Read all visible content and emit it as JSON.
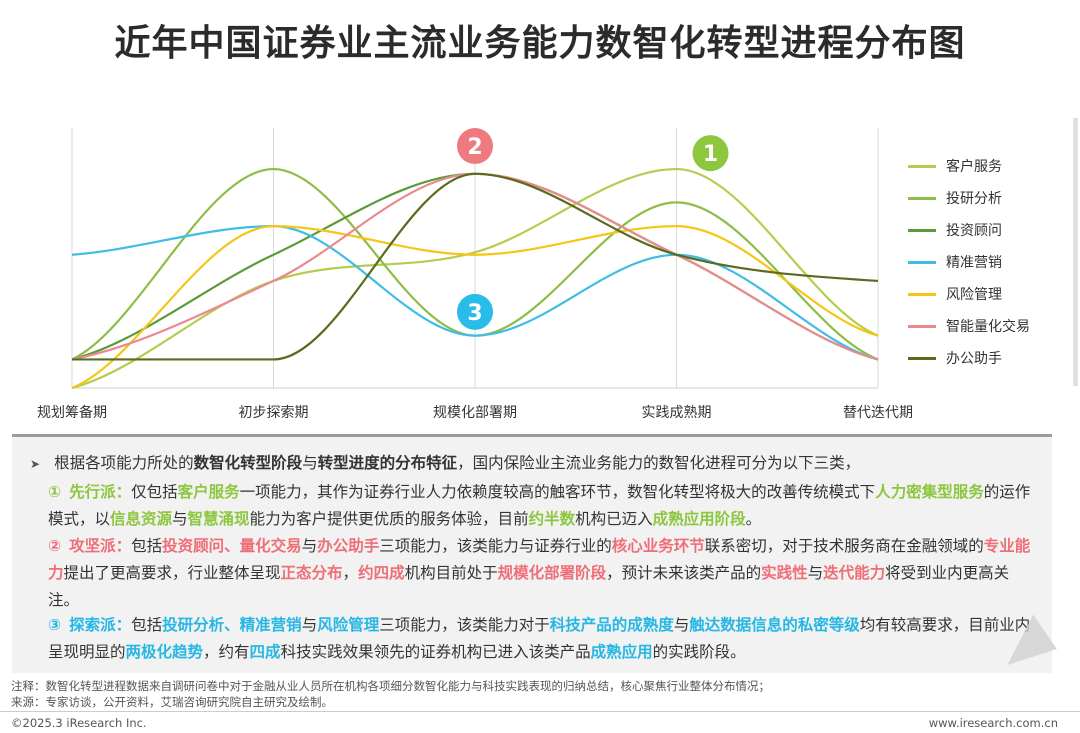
{
  "title": "近年中国证券业主流业务能力数智化转型进程分布图",
  "chart_data": {
    "type": "line",
    "categories": [
      "规划筹备期",
      "初步探索期",
      "规模化部署期",
      "实践成熟期",
      "替代迭代期"
    ],
    "ylim": [
      0,
      100
    ],
    "grid": "vertical-only",
    "legend_position": "right",
    "series": [
      {
        "name": "客户服务",
        "color": "#b5cd4e",
        "values": [
          0,
          45,
          57,
          92,
          22
        ]
      },
      {
        "name": "投研分析",
        "color": "#8dbd45",
        "values": [
          12,
          92,
          22,
          78,
          12
        ]
      },
      {
        "name": "投资顾问",
        "color": "#5a9a37",
        "values": [
          12,
          56,
          90,
          56,
          12
        ]
      },
      {
        "name": "精准营销",
        "color": "#3fbde4",
        "values": [
          56,
          68,
          22,
          56,
          12
        ]
      },
      {
        "name": "风险管理",
        "color": "#f5c617",
        "values": [
          0,
          68,
          56,
          68,
          22
        ]
      },
      {
        "name": "智能量化交易",
        "color": "#ea8a8f",
        "values": [
          12,
          45,
          90,
          56,
          12
        ]
      },
      {
        "name": "办公助手",
        "color": "#5b6b1e",
        "values": [
          12,
          12,
          90,
          56,
          45
        ]
      }
    ],
    "annotations": [
      {
        "label": "1",
        "color": "#8dc63f",
        "x": 3,
        "y": 97
      },
      {
        "label": "2",
        "color": "#ee7a80",
        "x": 2,
        "y": 100
      },
      {
        "label": "3",
        "color": "#27bde8",
        "x": 2,
        "y": 32
      }
    ]
  },
  "summary": {
    "intro_a": "根据各项能力所处的",
    "intro_b": "数智化转型阶段",
    "intro_c": "与",
    "intro_d": "转型进度的分布特征",
    "intro_e": "，国内保险业主流业务能力的数智化进程可分为以下三类，",
    "cat1": {
      "num": "①",
      "name": "先行派：",
      "t1": "仅包括",
      "h1": "客户服务",
      "t2": "一项能力，其作为证券行业人力依赖度较高的触客环节，数智化转型将极大的改善传统模式下",
      "h2": "人力密集型服务",
      "t3": "的运作模式，以",
      "h3": "信息资源",
      "t4": "与",
      "h4": "智慧涌现",
      "t5": "能力为客户提供更优质的服务体验，目前",
      "h5": "约半数",
      "t6": "机构已迈入",
      "h6": "成熟应用阶段",
      "t7": "。"
    },
    "cat2": {
      "num": "②",
      "name": "攻坚派：",
      "t1": "包括",
      "h1": "投资顾问、量化交易",
      "t2": "与",
      "h2": "办公助手",
      "t3": "三项能力，该类能力与证券行业的",
      "h3": "核心业务环节",
      "t4": "联系密切，对于技术服务商在金融领域的",
      "h4": "专业能力",
      "t5": "提出了更高要求，行业整体呈现",
      "h5": "正态分布",
      "t6": "，",
      "h6": "约四成",
      "t7": "机构目前处于",
      "h7": "规模化部署阶段",
      "t8": "，预计未来该类产品的",
      "h8": "实践性",
      "t9": "与",
      "h9": "迭代能力",
      "t10": "将受到业内更高关注。"
    },
    "cat3": {
      "num": "③",
      "name": "探索派：",
      "t1": "包括",
      "h1": "投研分析、精准营销",
      "t2": "与",
      "h2": "风险管理",
      "t3": "三项能力，该类能力对于",
      "h3": "科技产品的成熟度",
      "t4": "与",
      "h4": "触达数据信息的私密等级",
      "t5": "均有较高要求，目前业内呈现明显的",
      "h5": "两极化趋势",
      "t6": "，约有",
      "h6": "四成",
      "t7": "科技实践效果领先的证券机构已进入该类产品",
      "h7": "成熟应用",
      "t8": "的实践阶段。"
    },
    "colors": {
      "cat1": "#8dc63f",
      "cat2": "#ee6f77",
      "cat3": "#27b7e4"
    }
  },
  "notes": {
    "note": "注释：数智化转型进程数据来自调研问卷中对于金融从业人员所在机构各项细分数智化能力与科技实践表现的归纳总结，核心聚焦行业整体分布情况；",
    "source": "来源：专家访谈，公开资料，艾瑞咨询研究院自主研究及绘制。"
  },
  "footer": {
    "copyright": "©2025.3 iResearch Inc.",
    "website": "www.iresearch.com.cn"
  }
}
